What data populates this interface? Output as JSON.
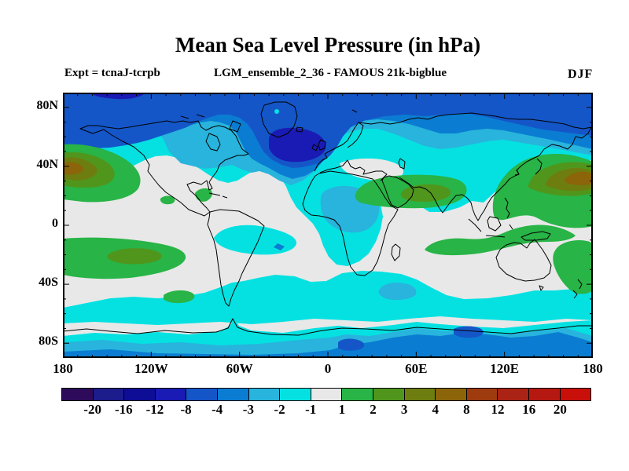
{
  "title": "Mean Sea Level Pressure (in hPa)",
  "subtitle_left": "Expt = tcnaJ-tcrpb",
  "subtitle_center": "LGM_ensemble_2_36 - FAMOUS 21k-bigblue",
  "season": "DJF",
  "axes": {
    "lat_ticks": [
      "80N",
      "40N",
      "0",
      "40S",
      "80S"
    ],
    "lon_ticks": [
      "180",
      "120W",
      "60W",
      "0",
      "60E",
      "120E",
      "180"
    ]
  },
  "colorbar": {
    "tick_labels": [
      "-20",
      "-16",
      "-12",
      "-8",
      "-4",
      "-3",
      "-2",
      "-1",
      "1",
      "2",
      "3",
      "4",
      "8",
      "12",
      "16",
      "20"
    ],
    "levels": [
      -20,
      -16,
      -12,
      -8,
      -4,
      -3,
      -2,
      -1,
      1,
      2,
      3,
      4,
      8,
      12,
      16,
      20
    ],
    "colors": [
      "#2e0a5a",
      "#1c1c8c",
      "#0d0d96",
      "#1a1ab4",
      "#1456c8",
      "#0a7dd2",
      "#28b4dc",
      "#05e1e1",
      "#e8e8e8",
      "#28b446",
      "#50961c",
      "#6e7d0f",
      "#8c640a",
      "#9e3c0f",
      "#aa2314",
      "#b41810",
      "#c80f0a"
    ]
  },
  "chart_data": {
    "type": "filled_contour_map",
    "title": "Mean Sea Level Pressure (in hPa)",
    "units": "hPa",
    "season": "DJF",
    "experiment": "Expt = tcnaJ-tcrpb",
    "dataset": "LGM_ensemble_2_36 - FAMOUS 21k-bigblue",
    "projection": "equirectangular",
    "lon_range": [
      -180,
      180
    ],
    "lat_range": [
      -90,
      90
    ],
    "lon_ticks_deg": [
      -180,
      -120,
      -60,
      0,
      60,
      120,
      180
    ],
    "lat_ticks_deg": [
      80,
      40,
      0,
      -40,
      -80
    ],
    "contour_levels": [
      -20,
      -16,
      -12,
      -8,
      -4,
      -3,
      -2,
      -1,
      1,
      2,
      3,
      4,
      8,
      12,
      16,
      20
    ],
    "legend_position": "bottom",
    "grid": false,
    "anomaly_features": [
      {
        "name": "Arctic / high-latitude negative anomaly",
        "extent": "poleward of ~55N, all longitudes",
        "value_band": "-8 to -4"
      },
      {
        "name": "North Atlantic deep negative core south of Iceland-Greenland",
        "center": "55N 25W",
        "value_band": "-12 to -8"
      },
      {
        "name": "Northeast Pacific positive anomaly",
        "center": "40N 170W",
        "value_band": "+4 to +8 at core"
      },
      {
        "name": "Northwest Pacific / Japan positive anomaly",
        "center": "38N 155E",
        "value_band": "+3 to +8 at core"
      },
      {
        "name": "Tibetan Plateau / North India positive anomaly",
        "center": "28N 85E",
        "value_band": "+2 to +3 at core"
      },
      {
        "name": "Central Africa negative blob",
        "center": "5N 20E",
        "value_band": "-3 to -2"
      },
      {
        "name": "Equatorial Atlantic negative patch off Brazil",
        "center": "5S 30W",
        "value_band": "-2 to -1, small -4 to -3 core"
      },
      {
        "name": "Subtropical South Pacific positive band",
        "extent": "10S-35S, 180W-110W",
        "value_band": "+2 to +3 at core"
      },
      {
        "name": "South Indian Ocean to Coral Sea positive band",
        "extent": "5S-30S, 60E-180E",
        "value_band": "+1 to +2"
      },
      {
        "name": "Caribbean / East Pacific small positive spots",
        "center": "18N 85W and 16N 110W",
        "value_band": "+1 to +2"
      },
      {
        "name": "Southern Ocean negative band",
        "extent": "45S-65S circumpolar",
        "value_band": "-2 to -1"
      },
      {
        "name": "Antarctic negative anomaly",
        "extent": "poleward of ~65S",
        "value_band": "-8 to -3"
      },
      {
        "name": "Near-zero band",
        "extent": "subtropics and remaining mid-latitudes",
        "value_band": "-1 to +1"
      }
    ]
  }
}
